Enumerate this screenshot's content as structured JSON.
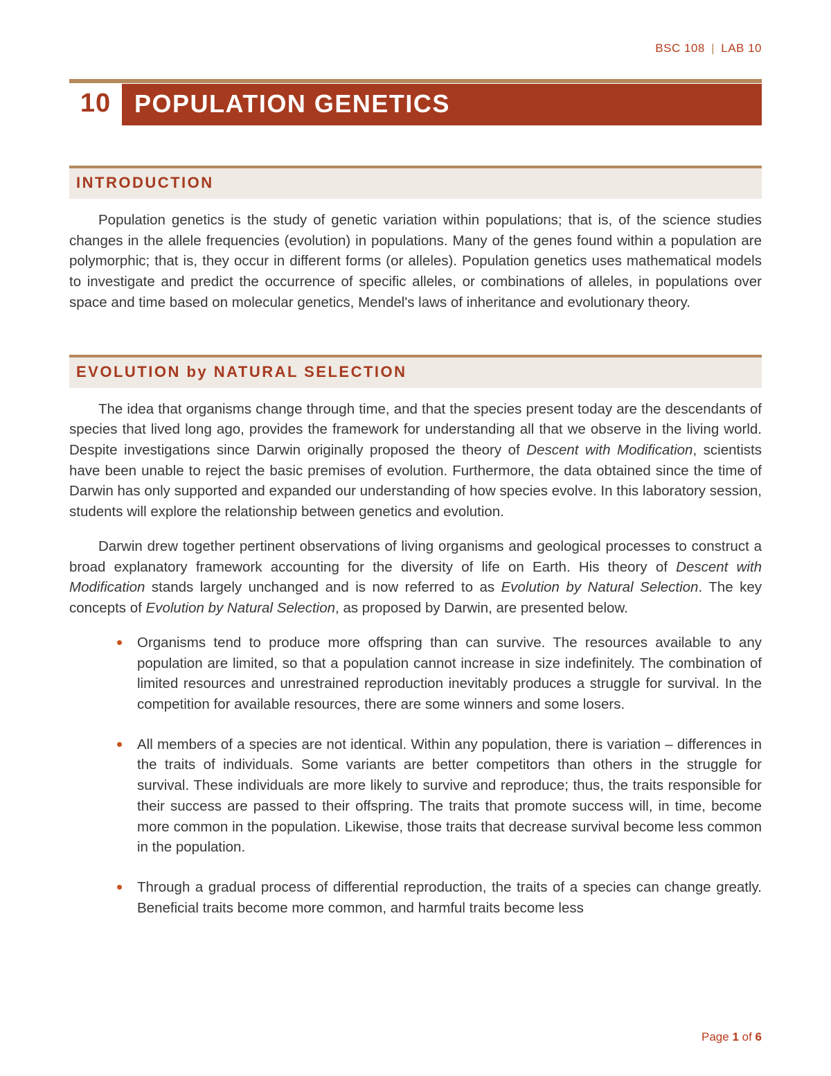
{
  "colors": {
    "brand_red": "#a63a1f",
    "accent_red": "#b73b1c",
    "gold_rule": "#b5895c",
    "section_bg": "#efeae4",
    "bullet": "#c8551f",
    "body_text": "#363636",
    "page_bg": "#ffffff"
  },
  "header": {
    "course": "BSC 108",
    "separator": "|",
    "lab": "LAB 10"
  },
  "title": {
    "number": "10",
    "text": "POPULATION GENETICS"
  },
  "sections": {
    "intro": {
      "heading": "INTRODUCTION",
      "p1": "Population genetics is the study of genetic variation within populations; that is, of the science studies changes in the allele frequencies (evolution) in populations. Many of the genes found within a population are polymorphic; that is, they occur in different forms (or alleles). Population genetics uses mathematical models to investigate and predict the occurrence of specific alleles, or combinations of alleles, in populations over space and time based on molecular genetics, Mendel's laws of inheritance and evolutionary theory."
    },
    "evolution": {
      "heading": "EVOLUTION by NATURAL SELECTION",
      "p1_a": "The idea that organisms change through time, and that the species present today are the descendants of species that lived long ago, provides the framework for understanding all that we observe in the living world. Despite investigations since Darwin originally proposed the theory of ",
      "p1_em1": "Descent with Modification",
      "p1_b": ", scientists have been unable to reject the basic premises of evolution. Furthermore, the data obtained since the time of Darwin has only supported and expanded our understanding of how species evolve. In this laboratory session, students will explore the relationship between genetics and evolution.",
      "p2_a": "Darwin drew together pertinent observations of living organisms and geological processes to construct a broad explanatory framework accounting for the diversity of life on Earth. His theory of ",
      "p2_em1": "Descent with Modification",
      "p2_b": " stands largely unchanged and is now referred to as ",
      "p2_em2": "Evolution by Natural Selection",
      "p2_c": ". The key concepts of ",
      "p2_em3": "Evolution by Natural Selection",
      "p2_d": ", as proposed by Darwin, are presented below.",
      "bullets": [
        "Organisms tend to produce more offspring than can survive. The resources available to any population are limited, so that a population cannot increase in size indefinitely. The combination of limited resources and unrestrained reproduction inevitably produces a struggle for survival. In the competition for available resources, there are some winners and some losers.",
        "All members of a species are not identical. Within any population, there is variation – differences in the traits of individuals. Some variants are better competitors than others in the struggle for survival. These individuals are more likely to survive and reproduce; thus, the traits responsible for their success are passed to their offspring. The traits that promote success will, in time, become more common in the population. Likewise, those traits that decrease survival become less common in the population.",
        "Through a gradual process of differential reproduction, the traits of a species can change greatly. Beneficial traits become more common, and harmful traits become less"
      ]
    }
  },
  "footer": {
    "prefix": "Page ",
    "current": "1",
    "of_word": " of ",
    "total": "6"
  }
}
